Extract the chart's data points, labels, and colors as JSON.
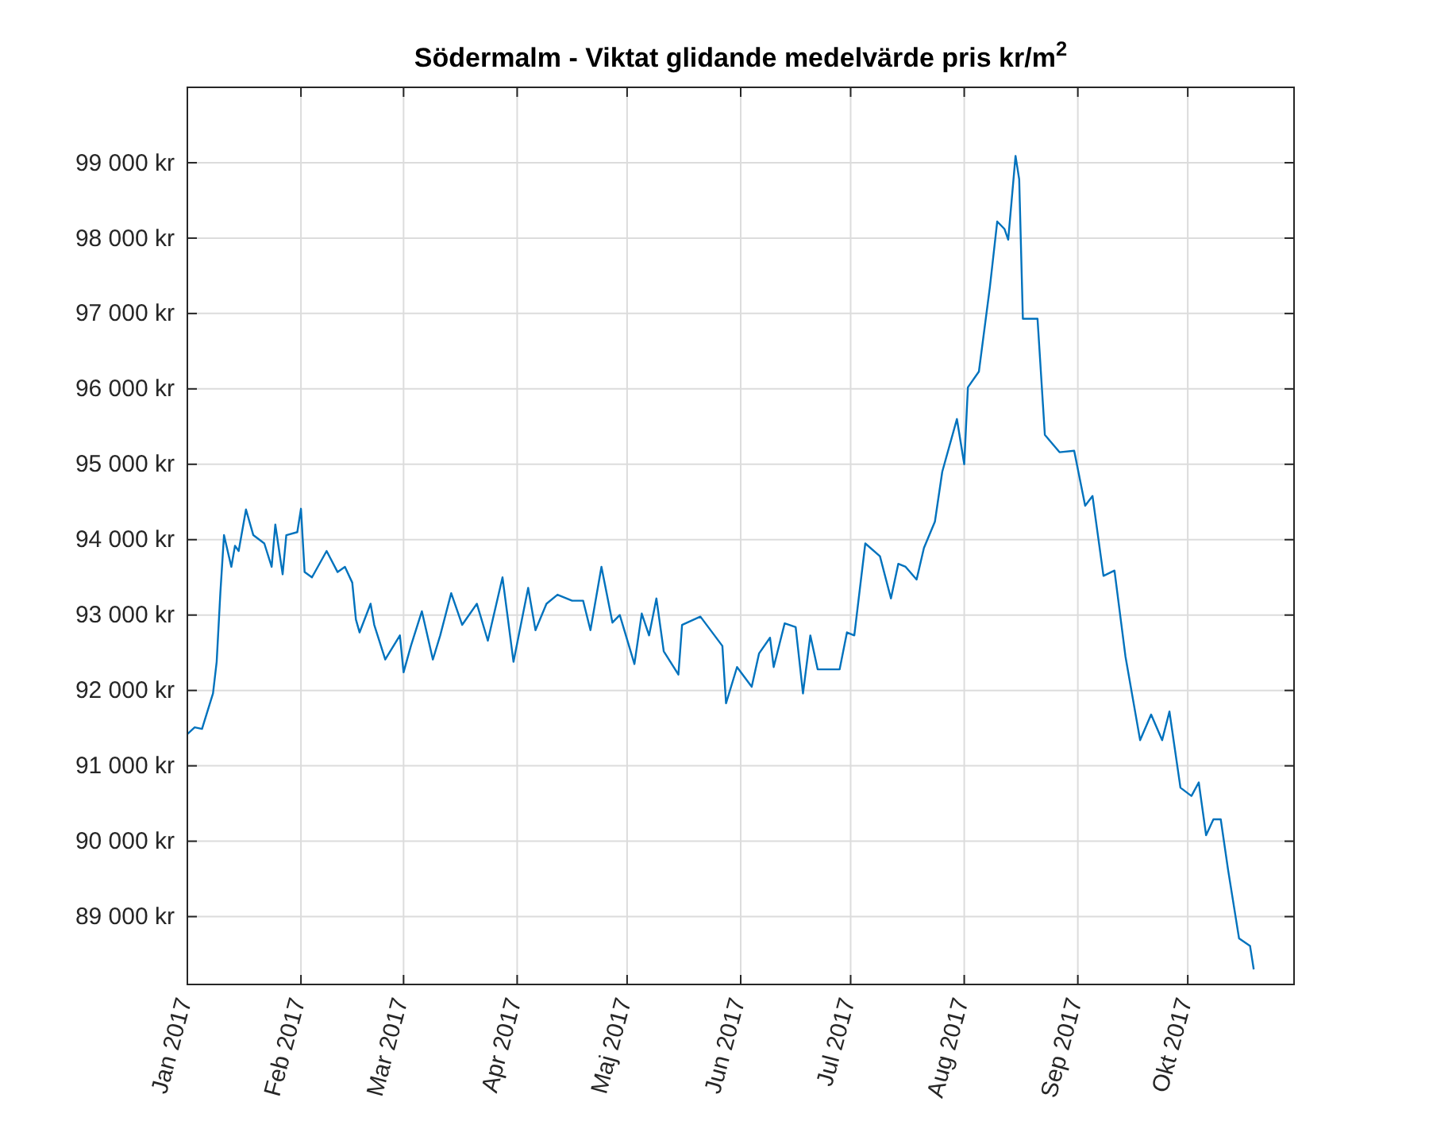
{
  "chart_data": {
    "type": "line",
    "title": "Södermalm - Viktat glidande medelvärde pris kr/m$^{2}$",
    "x": [
      "2017-01-01",
      "2017-01-03",
      "2017-01-05",
      "2017-01-08",
      "2017-01-09",
      "2017-01-10",
      "2017-01-11",
      "2017-01-13",
      "2017-01-14",
      "2017-01-15",
      "2017-01-17",
      "2017-01-19",
      "2017-01-22",
      "2017-01-24",
      "2017-01-25",
      "2017-01-27",
      "2017-01-28",
      "2017-01-31",
      "2017-02-01",
      "2017-02-02",
      "2017-02-04",
      "2017-02-08",
      "2017-02-11",
      "2017-02-13",
      "2017-02-15",
      "2017-02-16",
      "2017-02-17",
      "2017-02-20",
      "2017-02-21",
      "2017-02-24",
      "2017-02-28",
      "2017-03-01",
      "2017-03-03",
      "2017-03-06",
      "2017-03-09",
      "2017-03-11",
      "2017-03-14",
      "2017-03-17",
      "2017-03-21",
      "2017-03-24",
      "2017-03-25",
      "2017-03-28",
      "2017-03-31",
      "2017-04-04",
      "2017-04-06",
      "2017-04-09",
      "2017-04-12",
      "2017-04-16",
      "2017-04-19",
      "2017-04-21",
      "2017-04-24",
      "2017-04-27",
      "2017-04-29",
      "2017-05-03",
      "2017-05-05",
      "2017-05-07",
      "2017-05-09",
      "2017-05-11",
      "2017-05-15",
      "2017-05-16",
      "2017-05-21",
      "2017-05-27",
      "2017-05-28",
      "2017-05-31",
      "2017-06-04",
      "2017-06-06",
      "2017-06-09",
      "2017-06-10",
      "2017-06-13",
      "2017-06-16",
      "2017-06-18",
      "2017-06-20",
      "2017-06-22",
      "2017-06-28",
      "2017-06-30",
      "2017-07-02",
      "2017-07-05",
      "2017-07-09",
      "2017-07-12",
      "2017-07-14",
      "2017-07-16",
      "2017-07-19",
      "2017-07-21",
      "2017-07-24",
      "2017-07-26",
      "2017-07-30",
      "2017-08-01",
      "2017-08-02",
      "2017-08-05",
      "2017-08-08",
      "2017-08-10",
      "2017-08-12",
      "2017-08-13",
      "2017-08-15",
      "2017-08-16",
      "2017-08-17",
      "2017-08-21",
      "2017-08-23",
      "2017-08-27",
      "2017-08-31",
      "2017-09-03",
      "2017-09-05",
      "2017-09-08",
      "2017-09-11",
      "2017-09-14",
      "2017-09-18",
      "2017-09-21",
      "2017-09-24",
      "2017-09-26",
      "2017-09-29",
      "2017-10-02",
      "2017-10-04",
      "2017-10-06",
      "2017-10-08",
      "2017-10-10",
      "2017-10-12",
      "2017-10-15",
      "2017-10-18",
      "2017-10-19"
    ],
    "series": [
      {
        "color": "#0072bd",
        "values": [
          91420,
          91510,
          91490,
          91960,
          92380,
          93290,
          94060,
          93640,
          93920,
          93850,
          94400,
          94060,
          93950,
          93640,
          94200,
          93540,
          94060,
          94100,
          94410,
          93570,
          93500,
          93850,
          93570,
          93640,
          93430,
          92940,
          92770,
          93150,
          92870,
          92410,
          92730,
          92240,
          92590,
          93050,
          92410,
          92730,
          93290,
          92870,
          93150,
          92660,
          92870,
          93500,
          92380,
          93360,
          92800,
          93150,
          93270,
          93190,
          93190,
          92800,
          93640,
          92900,
          93000,
          92350,
          93020,
          92730,
          93220,
          92520,
          92210,
          92870,
          92980,
          92590,
          91830,
          92310,
          92050,
          92490,
          92700,
          92310,
          92890,
          92840,
          91960,
          92730,
          92280,
          92280,
          92770,
          92730,
          93950,
          93780,
          93220,
          93680,
          93640,
          93470,
          93890,
          94240,
          94900,
          95600,
          95000,
          96020,
          96230,
          97350,
          98220,
          98120,
          97980,
          99090,
          98780,
          96930,
          96930,
          95390,
          95160,
          95180,
          94450,
          94580,
          93520,
          93590,
          92450,
          91340,
          91680,
          91340,
          91720,
          90710,
          90600,
          90780,
          90080,
          90290,
          90290,
          89620,
          88710,
          88610,
          88300
        ]
      }
    ],
    "xlim": [
      "2017-01-01",
      "2017-10-30"
    ],
    "xticks": [
      {
        "value": "2017-01-01",
        "label": "Jan 2017"
      },
      {
        "value": "2017-02-01",
        "label": "Feb 2017"
      },
      {
        "value": "2017-03-01",
        "label": "Mar 2017"
      },
      {
        "value": "2017-04-01",
        "label": "Apr 2017"
      },
      {
        "value": "2017-05-01",
        "label": "Maj 2017"
      },
      {
        "value": "2017-06-01",
        "label": "Jun 2017"
      },
      {
        "value": "2017-07-01",
        "label": "Jul 2017"
      },
      {
        "value": "2017-08-01",
        "label": "Aug 2017"
      },
      {
        "value": "2017-09-01",
        "label": "Sep 2017"
      },
      {
        "value": "2017-10-01",
        "label": "Okt 2017"
      }
    ],
    "ylim": [
      88100,
      100000
    ],
    "yticks": [
      {
        "value": 89000,
        "label": "89 000 kr"
      },
      {
        "value": 90000,
        "label": "90 000 kr"
      },
      {
        "value": 91000,
        "label": "91 000 kr"
      },
      {
        "value": 92000,
        "label": "92 000 kr"
      },
      {
        "value": 93000,
        "label": "93 000 kr"
      },
      {
        "value": 94000,
        "label": "94 000 kr"
      },
      {
        "value": 95000,
        "label": "95 000 kr"
      },
      {
        "value": 96000,
        "label": "96 000 kr"
      },
      {
        "value": 97000,
        "label": "97 000 kr"
      },
      {
        "value": 98000,
        "label": "98 000 kr"
      },
      {
        "value": 99000,
        "label": "99 000 kr"
      }
    ],
    "grid": true
  }
}
